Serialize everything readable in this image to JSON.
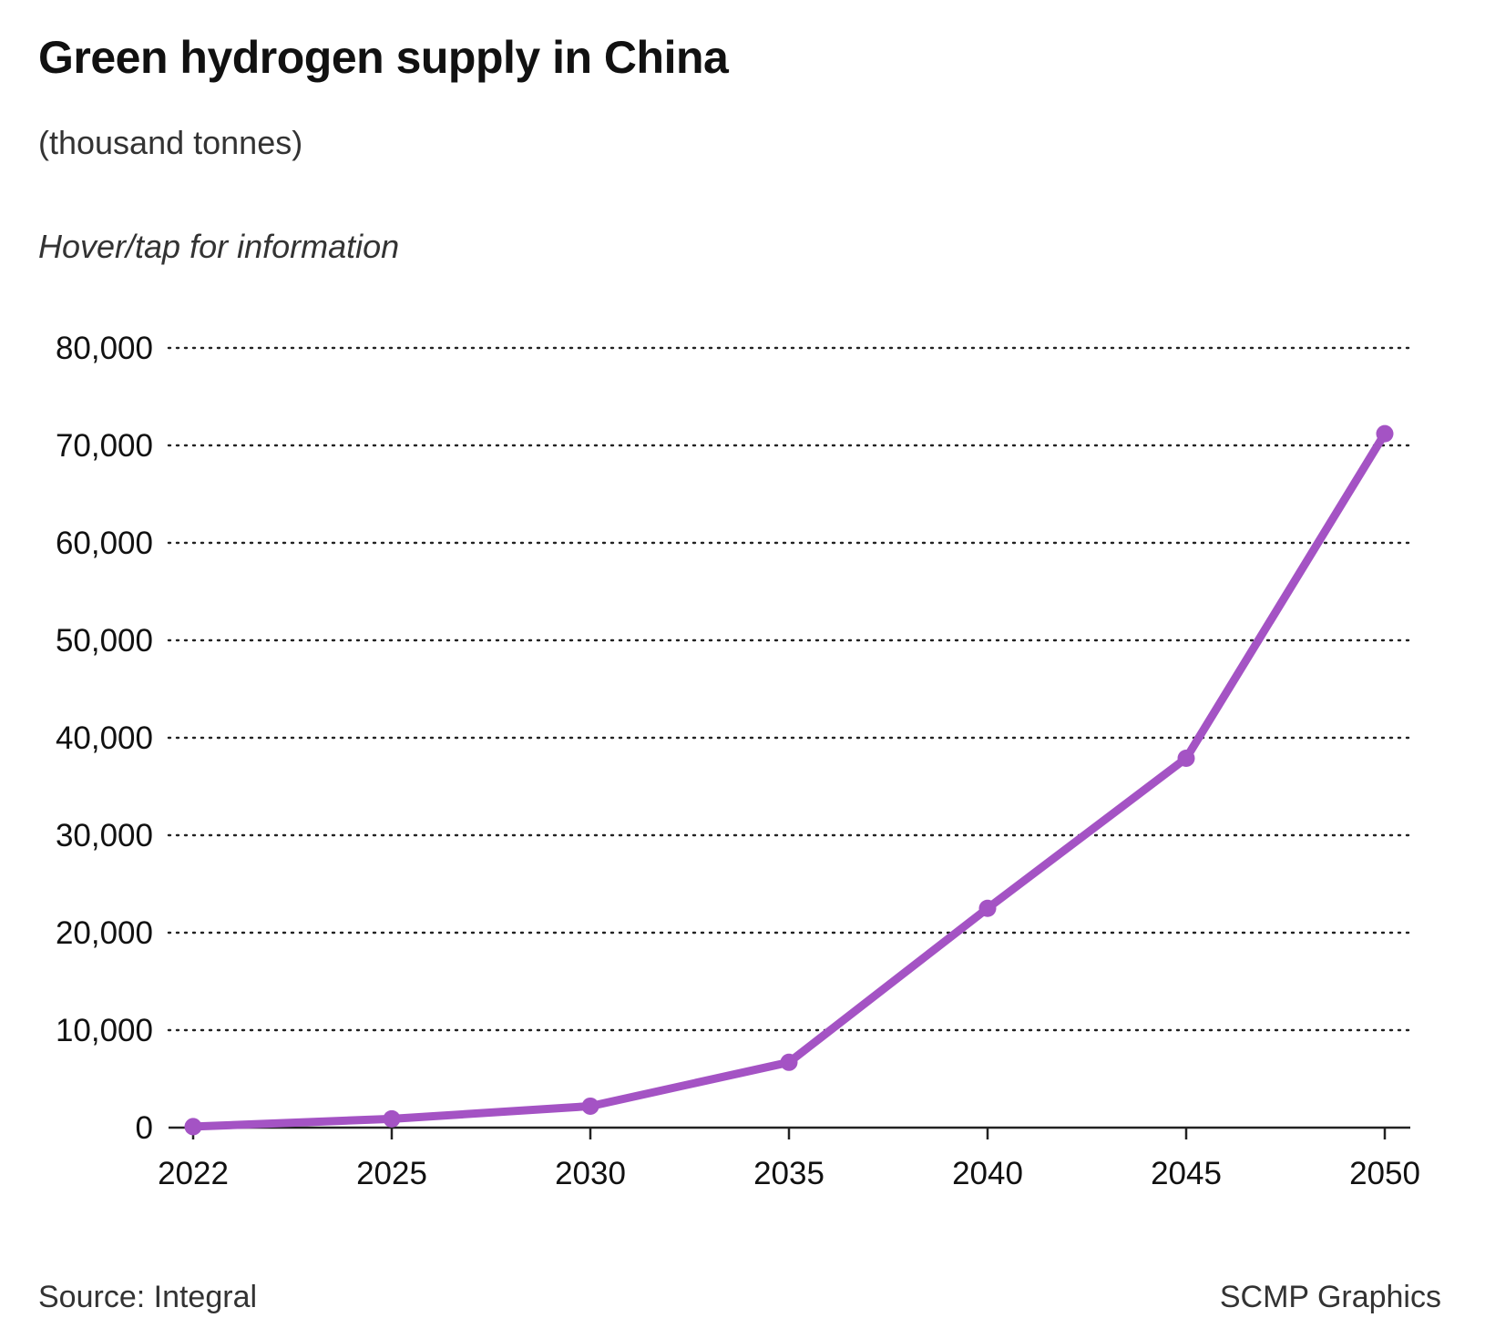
{
  "header": {
    "title": "Green hydrogen supply in China",
    "subtitle": "(thousand tonnes)",
    "hint": "Hover/tap for information"
  },
  "footer": {
    "source": "Source: Integral",
    "credit": "SCMP Graphics"
  },
  "colors": {
    "line": "#a453c4",
    "grid": "#222222",
    "axis": "#222222"
  },
  "chart_data": {
    "type": "line",
    "title": "Green hydrogen supply in China",
    "subtitle": "(thousand tonnes)",
    "xlabel": "",
    "ylabel": "",
    "categories": [
      "2022",
      "2025",
      "2030",
      "2035",
      "2040",
      "2045",
      "2050"
    ],
    "series": [
      {
        "name": "Green hydrogen supply",
        "values": [
          100,
          900,
          2200,
          6700,
          22500,
          37900,
          71200
        ]
      }
    ],
    "ylim": [
      0,
      80000
    ],
    "yticks": [
      0,
      10000,
      20000,
      30000,
      40000,
      50000,
      60000,
      70000,
      80000
    ],
    "ytick_labels": [
      "0",
      "10,000",
      "20,000",
      "30,000",
      "40,000",
      "50,000",
      "60,000",
      "70,000",
      "80,000"
    ],
    "grid": true,
    "legend": "none"
  }
}
